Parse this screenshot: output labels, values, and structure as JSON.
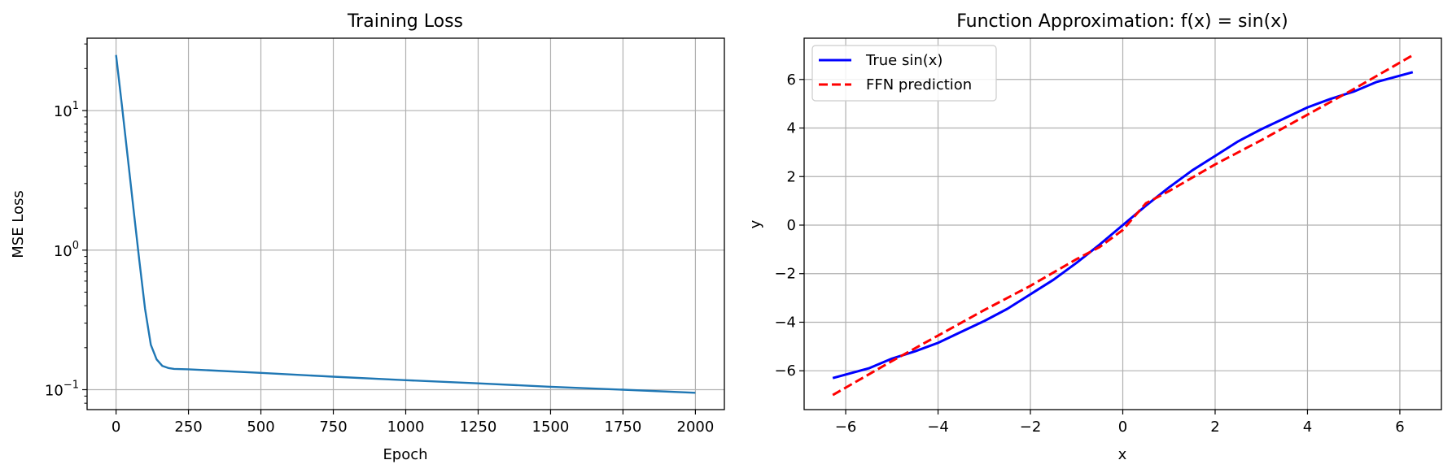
{
  "chart_data": [
    {
      "type": "line",
      "title": "Training Loss",
      "xlabel": "Epoch",
      "ylabel": "MSE Loss",
      "yscale": "log",
      "xlim": [
        -100,
        2100
      ],
      "ylim": [
        0.072,
        33
      ],
      "grid": true,
      "xticks": [
        0,
        250,
        500,
        750,
        1000,
        1250,
        1500,
        1750,
        2000
      ],
      "yticks": [
        {
          "value": 0.1,
          "base": "10",
          "exp": "−1"
        },
        {
          "value": 1,
          "base": "10",
          "exp": "0"
        },
        {
          "value": 10,
          "base": "10",
          "exp": "1"
        }
      ],
      "series": [
        {
          "color": "#1f77b4",
          "x": [
            0,
            20,
            40,
            60,
            80,
            100,
            120,
            140,
            160,
            180,
            200,
            250,
            500,
            750,
            1000,
            1250,
            1500,
            1750,
            2000
          ],
          "y": [
            25,
            11,
            4.7,
            2.0,
            0.85,
            0.38,
            0.21,
            0.165,
            0.148,
            0.143,
            0.141,
            0.14,
            0.132,
            0.124,
            0.117,
            0.111,
            0.105,
            0.1,
            0.095
          ]
        }
      ]
    },
    {
      "type": "line",
      "title": "Function Approximation: f(x) = sin(x)",
      "xlabel": "x",
      "ylabel": "y",
      "xlim": [
        -6.9,
        6.9
      ],
      "ylim": [
        -7.6,
        7.7
      ],
      "grid": true,
      "legend": "top-left",
      "xticks": [
        {
          "value": -6,
          "label": "−6"
        },
        {
          "value": -4,
          "label": "−4"
        },
        {
          "value": -2,
          "label": "−2"
        },
        {
          "value": 0,
          "label": "0"
        },
        {
          "value": 2,
          "label": "2"
        },
        {
          "value": 4,
          "label": "4"
        },
        {
          "value": 6,
          "label": "6"
        }
      ],
      "yticks": [
        {
          "value": -6,
          "label": "−6"
        },
        {
          "value": -4,
          "label": "−4"
        },
        {
          "value": -2,
          "label": "−2"
        },
        {
          "value": 0,
          "label": "0"
        },
        {
          "value": 2,
          "label": "2"
        },
        {
          "value": 4,
          "label": "4"
        },
        {
          "value": 6,
          "label": "6"
        }
      ],
      "series": [
        {
          "name": "True sin(x)",
          "color": "#0000ff",
          "dash": "solid",
          "x": [
            -6.28,
            -5.5,
            -5.0,
            -4.5,
            -4.0,
            -3.5,
            -3.0,
            -2.5,
            -2.0,
            -1.5,
            -1.0,
            -0.5,
            0,
            0.5,
            1.0,
            1.5,
            2.0,
            2.5,
            3.0,
            3.5,
            4.0,
            4.5,
            5.0,
            5.5,
            6.28
          ],
          "y": [
            -6.3,
            -5.9,
            -5.5,
            -5.2,
            -4.85,
            -4.4,
            -3.95,
            -3.45,
            -2.85,
            -2.25,
            -1.55,
            -0.8,
            0,
            0.8,
            1.55,
            2.25,
            2.85,
            3.45,
            3.95,
            4.4,
            4.85,
            5.2,
            5.5,
            5.9,
            6.3
          ]
        },
        {
          "name": "FFN prediction",
          "color": "#ff0000",
          "dash": "dashed",
          "x": [
            -6.28,
            -5.0,
            -4.0,
            -3.0,
            -2.0,
            -1.0,
            -0.5,
            0,
            0.5,
            1.0,
            2.0,
            3.0,
            4.0,
            5.0,
            6.28
          ],
          "y": [
            -7.0,
            -5.6,
            -4.55,
            -3.5,
            -2.5,
            -1.4,
            -0.9,
            -0.2,
            0.9,
            1.4,
            2.5,
            3.5,
            4.55,
            5.6,
            7.0
          ]
        }
      ]
    }
  ]
}
